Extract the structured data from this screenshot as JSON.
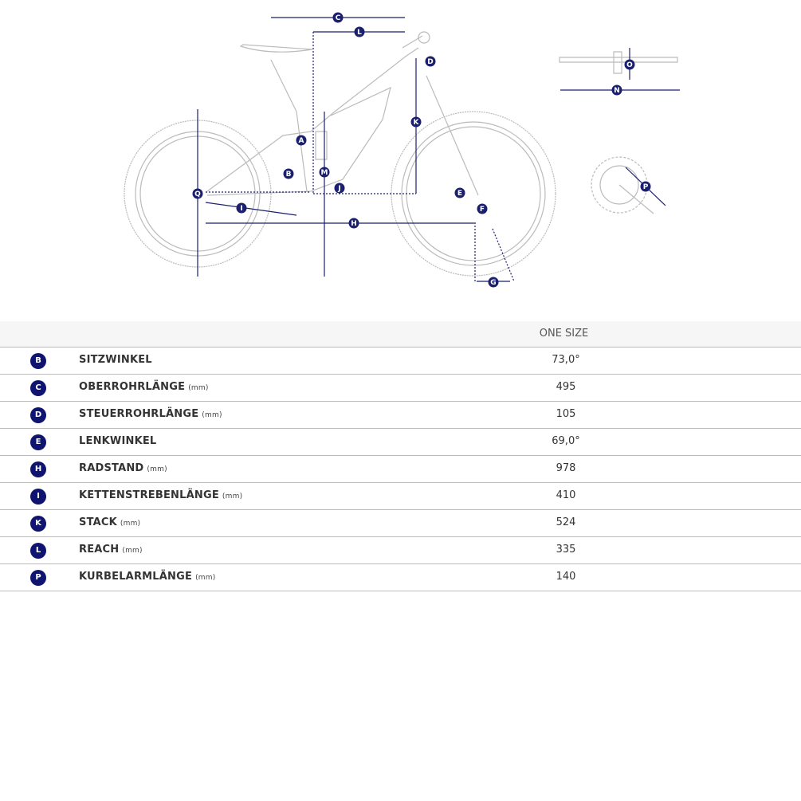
{
  "diagram": {
    "markers": [
      "A",
      "B",
      "C",
      "D",
      "E",
      "F",
      "G",
      "H",
      "I",
      "J",
      "K",
      "L",
      "M",
      "N",
      "O",
      "P",
      "Q"
    ],
    "accent": "#1a1f6e"
  },
  "table": {
    "column_header": "ONE SIZE",
    "rows": [
      {
        "key": "B",
        "label": "SITZWINKEL",
        "unit": "",
        "value": "73,0°"
      },
      {
        "key": "C",
        "label": "OBERROHRLÄNGE",
        "unit": "(mm)",
        "value": "495"
      },
      {
        "key": "D",
        "label": "STEUERROHRLÄNGE",
        "unit": "(mm)",
        "value": "105"
      },
      {
        "key": "E",
        "label": "LENKWINKEL",
        "unit": "",
        "value": "69,0°"
      },
      {
        "key": "H",
        "label": "RADSTAND",
        "unit": "(mm)",
        "value": "978"
      },
      {
        "key": "I",
        "label": "KETTENSTREBENLÄNGE",
        "unit": "(mm)",
        "value": "410"
      },
      {
        "key": "K",
        "label": "STACK",
        "unit": "(mm)",
        "value": "524"
      },
      {
        "key": "L",
        "label": "REACH",
        "unit": "(mm)",
        "value": "335"
      },
      {
        "key": "P",
        "label": "KURBELARMLÄNGE",
        "unit": "(mm)",
        "value": "140"
      }
    ]
  }
}
